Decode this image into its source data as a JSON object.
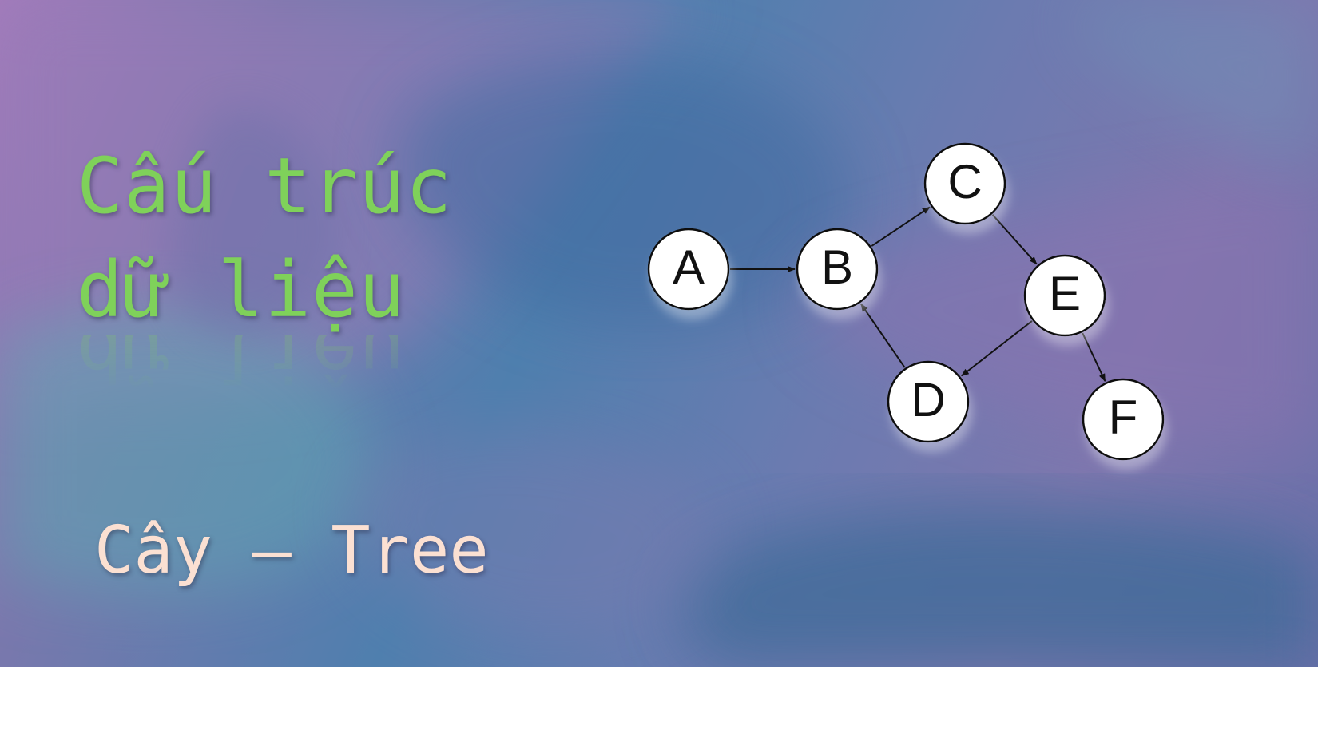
{
  "title": {
    "line1": "Cấu trúc",
    "line2": "dữ liệu"
  },
  "subtitle": "Cây – Tree",
  "colors": {
    "title": "#7fd15a",
    "subtitle": "#fbe0d2",
    "node_fill": "#ffffff",
    "node_stroke": "#111111",
    "edge": "#111111"
  },
  "graph": {
    "nodes": [
      {
        "id": "A",
        "label": "A"
      },
      {
        "id": "B",
        "label": "B"
      },
      {
        "id": "C",
        "label": "C"
      },
      {
        "id": "D",
        "label": "D"
      },
      {
        "id": "E",
        "label": "E"
      },
      {
        "id": "F",
        "label": "F"
      }
    ],
    "edges": [
      {
        "from": "A",
        "to": "B"
      },
      {
        "from": "B",
        "to": "C"
      },
      {
        "from": "C",
        "to": "E"
      },
      {
        "from": "E",
        "to": "D"
      },
      {
        "from": "D",
        "to": "B"
      },
      {
        "from": "E",
        "to": "F"
      }
    ]
  }
}
